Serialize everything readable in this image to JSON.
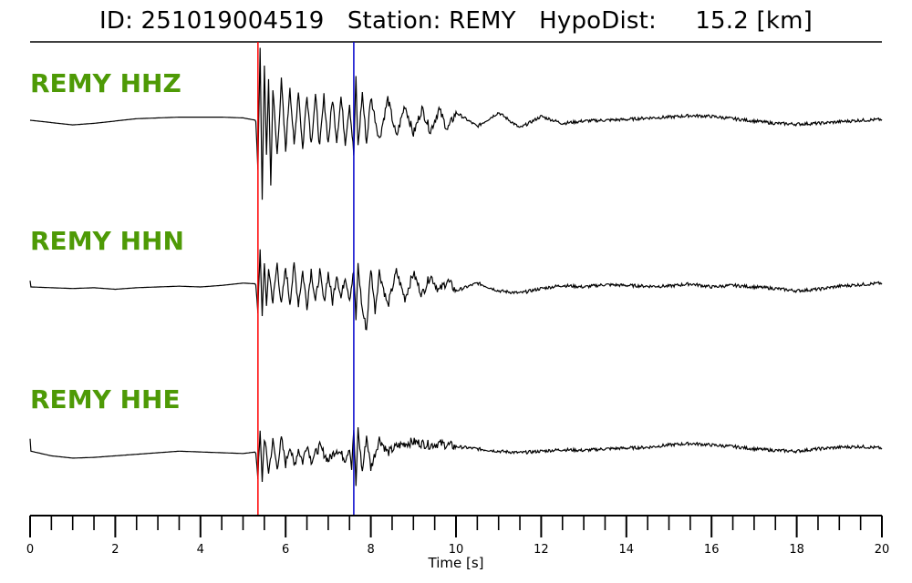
{
  "title": "ID: 251019004519   Station: REMY   HypoDist:     15.2 [km]",
  "colors": {
    "label": "#4e9a06",
    "trace": "#000000",
    "p_pick": "#ff0000",
    "s_pick": "#0000cc"
  },
  "chart_data": {
    "type": "line",
    "title": "ID: 251019004519   Station: REMY   HypoDist:     15.2 [km]",
    "xlabel": "Time [s]",
    "xlim": [
      0,
      20
    ],
    "x_ticks": [
      0,
      2,
      4,
      6,
      8,
      10,
      12,
      14,
      16,
      18,
      20
    ],
    "minor_tick_step": 0.5,
    "grid": false,
    "picks": [
      {
        "phase": "P",
        "time": 5.35,
        "color": "#ff0000"
      },
      {
        "phase": "S",
        "time": 7.6,
        "color": "#0000cc"
      }
    ],
    "series": [
      {
        "name": "REMY HHZ",
        "points": [
          [
            0,
            0.0
          ],
          [
            0.5,
            -0.03
          ],
          [
            1,
            -0.06
          ],
          [
            1.5,
            -0.04
          ],
          [
            2,
            -0.01
          ],
          [
            2.5,
            0.02
          ],
          [
            3,
            0.03
          ],
          [
            3.5,
            0.04
          ],
          [
            4,
            0.04
          ],
          [
            4.5,
            0.04
          ],
          [
            5,
            0.03
          ],
          [
            5.3,
            0.0
          ],
          [
            5.35,
            -0.6
          ],
          [
            5.4,
            0.9
          ],
          [
            5.45,
            -1.0
          ],
          [
            5.5,
            0.75
          ],
          [
            5.55,
            -0.5
          ],
          [
            5.6,
            0.55
          ],
          [
            5.65,
            -0.85
          ],
          [
            5.7,
            0.4
          ],
          [
            5.8,
            -0.45
          ],
          [
            5.9,
            0.5
          ],
          [
            6.0,
            -0.4
          ],
          [
            6.1,
            0.45
          ],
          [
            6.2,
            -0.35
          ],
          [
            6.3,
            0.4
          ],
          [
            6.4,
            -0.38
          ],
          [
            6.5,
            0.35
          ],
          [
            6.6,
            -0.3
          ],
          [
            6.7,
            0.32
          ],
          [
            6.8,
            -0.35
          ],
          [
            6.9,
            0.3
          ],
          [
            7.0,
            -0.3
          ],
          [
            7.1,
            0.28
          ],
          [
            7.2,
            -0.25
          ],
          [
            7.3,
            0.3
          ],
          [
            7.4,
            -0.28
          ],
          [
            7.5,
            0.22
          ],
          [
            7.6,
            -0.45
          ],
          [
            7.65,
            0.55
          ],
          [
            7.7,
            -0.35
          ],
          [
            7.8,
            0.35
          ],
          [
            7.9,
            -0.3
          ],
          [
            8.0,
            0.3
          ],
          [
            8.2,
            -0.25
          ],
          [
            8.4,
            0.28
          ],
          [
            8.6,
            -0.22
          ],
          [
            8.8,
            0.2
          ],
          [
            9.0,
            -0.18
          ],
          [
            9.2,
            0.15
          ],
          [
            9.4,
            -0.14
          ],
          [
            9.6,
            0.14
          ],
          [
            9.8,
            -0.12
          ],
          [
            10,
            0.1
          ],
          [
            10.5,
            -0.08
          ],
          [
            11,
            0.1
          ],
          [
            11.5,
            -0.1
          ],
          [
            12,
            0.05
          ],
          [
            12.5,
            -0.04
          ],
          [
            13,
            -0.01
          ],
          [
            13.5,
            0.0
          ],
          [
            14,
            0.01
          ],
          [
            14.5,
            0.03
          ],
          [
            15,
            0.04
          ],
          [
            15.5,
            0.06
          ],
          [
            16,
            0.05
          ],
          [
            16.5,
            0.02
          ],
          [
            17,
            -0.01
          ],
          [
            17.5,
            -0.04
          ],
          [
            18,
            -0.05
          ],
          [
            18.5,
            -0.04
          ],
          [
            19,
            -0.02
          ],
          [
            19.5,
            0.0
          ],
          [
            20,
            0.01
          ]
        ]
      },
      {
        "name": "REMY HHN",
        "points": [
          [
            0,
            0.08
          ],
          [
            0.02,
            0.0
          ],
          [
            0.5,
            -0.01
          ],
          [
            1,
            -0.02
          ],
          [
            1.5,
            -0.01
          ],
          [
            2,
            -0.03
          ],
          [
            2.5,
            -0.01
          ],
          [
            3,
            0.0
          ],
          [
            3.5,
            0.01
          ],
          [
            4,
            0.0
          ],
          [
            4.5,
            0.02
          ],
          [
            5,
            0.05
          ],
          [
            5.3,
            0.04
          ],
          [
            5.35,
            -0.3
          ],
          [
            5.4,
            0.45
          ],
          [
            5.45,
            -0.35
          ],
          [
            5.5,
            0.35
          ],
          [
            5.55,
            -0.3
          ],
          [
            5.6,
            0.25
          ],
          [
            5.7,
            -0.2
          ],
          [
            5.8,
            0.3
          ],
          [
            5.9,
            -0.25
          ],
          [
            6.0,
            0.25
          ],
          [
            6.1,
            -0.2
          ],
          [
            6.2,
            0.28
          ],
          [
            6.3,
            -0.22
          ],
          [
            6.4,
            0.2
          ],
          [
            6.5,
            -0.25
          ],
          [
            6.6,
            0.22
          ],
          [
            6.7,
            -0.2
          ],
          [
            6.8,
            0.2
          ],
          [
            6.9,
            -0.2
          ],
          [
            7.0,
            0.18
          ],
          [
            7.1,
            -0.2
          ],
          [
            7.2,
            0.18
          ],
          [
            7.3,
            -0.15
          ],
          [
            7.4,
            0.15
          ],
          [
            7.5,
            -0.15
          ],
          [
            7.6,
            0.2
          ],
          [
            7.65,
            -0.45
          ],
          [
            7.7,
            0.28
          ],
          [
            7.8,
            -0.3
          ],
          [
            7.9,
            -0.55
          ],
          [
            8.0,
            0.25
          ],
          [
            8.1,
            -0.3
          ],
          [
            8.2,
            0.2
          ],
          [
            8.4,
            -0.25
          ],
          [
            8.6,
            0.2
          ],
          [
            8.8,
            -0.15
          ],
          [
            9.0,
            0.18
          ],
          [
            9.2,
            -0.1
          ],
          [
            9.4,
            0.15
          ],
          [
            9.6,
            -0.05
          ],
          [
            9.8,
            0.08
          ],
          [
            10,
            -0.05
          ],
          [
            10.5,
            0.05
          ],
          [
            11,
            -0.05
          ],
          [
            11.5,
            -0.08
          ],
          [
            12,
            -0.02
          ],
          [
            12.5,
            0.02
          ],
          [
            13,
            0.0
          ],
          [
            13.5,
            0.03
          ],
          [
            14,
            0.02
          ],
          [
            14.5,
            0.01
          ],
          [
            15,
            0.01
          ],
          [
            15.5,
            0.04
          ],
          [
            16,
            0.0
          ],
          [
            16.5,
            0.02
          ],
          [
            17,
            0.0
          ],
          [
            17.5,
            -0.02
          ],
          [
            18,
            -0.05
          ],
          [
            18.5,
            -0.03
          ],
          [
            19,
            0.01
          ],
          [
            19.5,
            0.03
          ],
          [
            20,
            0.05
          ]
        ]
      },
      {
        "name": "REMY HHE",
        "points": [
          [
            0,
            0.18
          ],
          [
            0.02,
            0.02
          ],
          [
            0.5,
            -0.04
          ],
          [
            1,
            -0.07
          ],
          [
            1.5,
            -0.06
          ],
          [
            2,
            -0.04
          ],
          [
            2.5,
            -0.02
          ],
          [
            3,
            0.0
          ],
          [
            3.5,
            0.02
          ],
          [
            4,
            0.01
          ],
          [
            4.5,
            0.0
          ],
          [
            5,
            -0.01
          ],
          [
            5.3,
            0.01
          ],
          [
            5.35,
            -0.3
          ],
          [
            5.4,
            0.25
          ],
          [
            5.45,
            -0.35
          ],
          [
            5.5,
            0.2
          ],
          [
            5.6,
            -0.25
          ],
          [
            5.7,
            0.15
          ],
          [
            5.8,
            -0.2
          ],
          [
            5.9,
            0.18
          ],
          [
            6.0,
            -0.15
          ],
          [
            6.1,
            0.1
          ],
          [
            6.2,
            -0.18
          ],
          [
            6.3,
            0.05
          ],
          [
            6.4,
            -0.12
          ],
          [
            6.5,
            0.12
          ],
          [
            6.6,
            -0.1
          ],
          [
            6.8,
            0.08
          ],
          [
            7.0,
            -0.1
          ],
          [
            7.2,
            0.05
          ],
          [
            7.4,
            -0.08
          ],
          [
            7.5,
            0.08
          ],
          [
            7.55,
            -0.2
          ],
          [
            7.6,
            0.3
          ],
          [
            7.65,
            -0.45
          ],
          [
            7.7,
            0.3
          ],
          [
            7.8,
            -0.25
          ],
          [
            7.9,
            0.22
          ],
          [
            8.0,
            -0.2
          ],
          [
            8.2,
            0.18
          ],
          [
            8.4,
            0.0
          ],
          [
            8.6,
            0.08
          ],
          [
            8.8,
            0.12
          ],
          [
            9.0,
            0.14
          ],
          [
            9.2,
            0.12
          ],
          [
            9.4,
            0.1
          ],
          [
            9.6,
            0.12
          ],
          [
            9.8,
            0.1
          ],
          [
            10,
            0.08
          ],
          [
            10.5,
            0.05
          ],
          [
            11,
            0.02
          ],
          [
            11.5,
            0.0
          ],
          [
            12,
            0.02
          ],
          [
            12.5,
            0.04
          ],
          [
            13,
            0.03
          ],
          [
            13.5,
            0.05
          ],
          [
            14,
            0.06
          ],
          [
            14.5,
            0.07
          ],
          [
            15,
            0.1
          ],
          [
            15.5,
            0.12
          ],
          [
            16,
            0.1
          ],
          [
            16.5,
            0.08
          ],
          [
            17,
            0.05
          ],
          [
            17.5,
            0.03
          ],
          [
            18,
            0.02
          ],
          [
            18.5,
            0.05
          ],
          [
            19,
            0.07
          ],
          [
            19.5,
            0.08
          ],
          [
            20,
            0.06
          ]
        ]
      }
    ]
  }
}
